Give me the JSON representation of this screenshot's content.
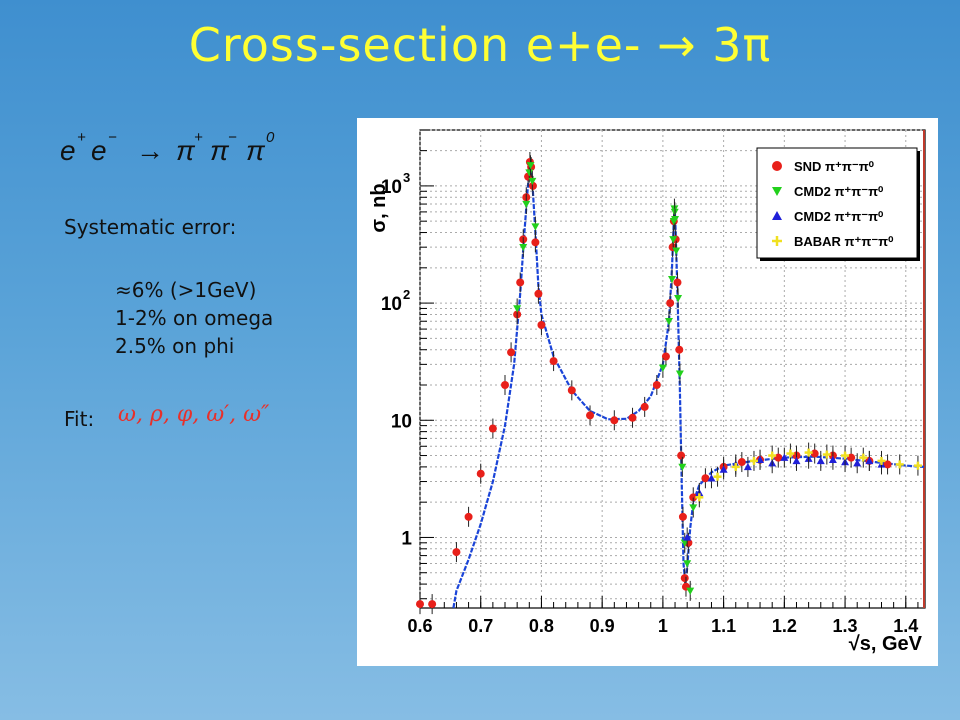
{
  "slide": {
    "title": "Cross-section e+e-  → 3π",
    "reaction": {
      "lhs_e1": "e",
      "lhs_e1_sup": "+",
      "lhs_e2": "e",
      "lhs_e2_sup": "−",
      "arrow": "→",
      "pi1": "π",
      "pi1_sup": "+",
      "pi2": "π",
      "pi2_sup": "−",
      "pi3": "π",
      "pi3_sup": "0"
    },
    "systematic_heading": "Systematic error:",
    "systematic_items": [
      "≈6% (>1GeV)",
      "1-2% on omega",
      "2.5% on phi"
    ],
    "fit_label": "Fit:",
    "fit_formula": "ω, ρ, φ, ω′, ω″"
  },
  "chart_data": {
    "type": "scatter",
    "ylabel": "σ, nb",
    "xlabel": "√s, GeV",
    "xlim": [
      0.6,
      1.43
    ],
    "ylim": [
      0.25,
      3000
    ],
    "yscale": "log",
    "grid": true,
    "legend_position": "top-right",
    "x_ticks": [
      "0.6",
      "0.7",
      "0.8",
      "0.9",
      "1",
      "1.1",
      "1.2",
      "1.3",
      "1.4"
    ],
    "y_ticks": [
      {
        "value": 1,
        "base": "1",
        "exp": ""
      },
      {
        "value": 10,
        "base": "10",
        "exp": ""
      },
      {
        "value": 100,
        "base": "10",
        "exp": "2"
      },
      {
        "value": 1000,
        "base": "10",
        "exp": "3"
      }
    ],
    "fit_curve": [
      [
        0.655,
        0.25
      ],
      [
        0.66,
        0.35
      ],
      [
        0.68,
        0.65
      ],
      [
        0.7,
        1.3
      ],
      [
        0.72,
        3.0
      ],
      [
        0.74,
        9.0
      ],
      [
        0.755,
        30
      ],
      [
        0.765,
        120
      ],
      [
        0.772,
        400
      ],
      [
        0.777,
        900
      ],
      [
        0.781,
        1550
      ],
      [
        0.783,
        1450
      ],
      [
        0.786,
        900
      ],
      [
        0.79,
        400
      ],
      [
        0.795,
        140
      ],
      [
        0.8,
        80
      ],
      [
        0.82,
        35
      ],
      [
        0.85,
        18
      ],
      [
        0.88,
        12
      ],
      [
        0.91,
        10.2
      ],
      [
        0.94,
        10.3
      ],
      [
        0.96,
        12
      ],
      [
        0.98,
        16
      ],
      [
        1.0,
        30
      ],
      [
        1.01,
        70
      ],
      [
        1.015,
        200
      ],
      [
        1.018,
        500
      ],
      [
        1.0195,
        650
      ],
      [
        1.021,
        420
      ],
      [
        1.024,
        120
      ],
      [
        1.028,
        18
      ],
      [
        1.031,
        3
      ],
      [
        1.034,
        0.6
      ],
      [
        1.037,
        0.4
      ],
      [
        1.04,
        0.55
      ],
      [
        1.045,
        1.2
      ],
      [
        1.05,
        2.0
      ],
      [
        1.06,
        2.8
      ],
      [
        1.08,
        3.6
      ],
      [
        1.1,
        4.1
      ],
      [
        1.15,
        4.5
      ],
      [
        1.2,
        4.8
      ],
      [
        1.25,
        4.9
      ],
      [
        1.3,
        4.7
      ],
      [
        1.35,
        4.4
      ],
      [
        1.4,
        4.1
      ],
      [
        1.43,
        4.0
      ]
    ],
    "series": [
      {
        "name": "SND π⁺π⁻π⁰",
        "color": "#e8201a",
        "marker": "circle",
        "points": [
          [
            0.6,
            0.27
          ],
          [
            0.62,
            0.27
          ],
          [
            0.66,
            0.75
          ],
          [
            0.68,
            1.5
          ],
          [
            0.7,
            3.5
          ],
          [
            0.72,
            8.5
          ],
          [
            0.74,
            20
          ],
          [
            0.75,
            38
          ],
          [
            0.76,
            80
          ],
          [
            0.765,
            150
          ],
          [
            0.77,
            350
          ],
          [
            0.775,
            800
          ],
          [
            0.778,
            1200
          ],
          [
            0.781,
            1600
          ],
          [
            0.783,
            1450
          ],
          [
            0.786,
            1000
          ],
          [
            0.79,
            330
          ],
          [
            0.795,
            120
          ],
          [
            0.8,
            65
          ],
          [
            0.82,
            32
          ],
          [
            0.85,
            18
          ],
          [
            0.88,
            11
          ],
          [
            0.92,
            10
          ],
          [
            0.95,
            10.5
          ],
          [
            0.97,
            13
          ],
          [
            0.99,
            20
          ],
          [
            1.005,
            35
          ],
          [
            1.012,
            100
          ],
          [
            1.016,
            300
          ],
          [
            1.018,
            500
          ],
          [
            1.021,
            350
          ],
          [
            1.024,
            150
          ],
          [
            1.027,
            40
          ],
          [
            1.03,
            5
          ],
          [
            1.033,
            1.5
          ],
          [
            1.036,
            0.45
          ],
          [
            1.038,
            0.38
          ],
          [
            1.042,
            0.9
          ],
          [
            1.05,
            2.2
          ],
          [
            1.07,
            3.2
          ],
          [
            1.1,
            4.0
          ],
          [
            1.13,
            4.4
          ],
          [
            1.16,
            4.6
          ],
          [
            1.19,
            4.8
          ],
          [
            1.22,
            5.0
          ],
          [
            1.25,
            5.2
          ],
          [
            1.28,
            5.0
          ],
          [
            1.31,
            4.8
          ],
          [
            1.34,
            4.5
          ],
          [
            1.37,
            4.2
          ]
        ]
      },
      {
        "name": "CMD2 π⁺π⁻π⁰",
        "color": "#22d01c",
        "marker": "triangle-down",
        "points": [
          [
            0.76,
            90
          ],
          [
            0.77,
            300
          ],
          [
            0.775,
            700
          ],
          [
            0.78,
            1300
          ],
          [
            0.782,
            1500
          ],
          [
            0.785,
            1100
          ],
          [
            0.79,
            450
          ],
          [
            1.0,
            28
          ],
          [
            1.01,
            70
          ],
          [
            1.015,
            160
          ],
          [
            1.017,
            350
          ],
          [
            1.018,
            500
          ],
          [
            1.019,
            640
          ],
          [
            1.0195,
            600
          ],
          [
            1.02,
            520
          ],
          [
            1.022,
            280
          ],
          [
            1.025,
            110
          ],
          [
            1.028,
            25
          ],
          [
            1.032,
            4
          ],
          [
            1.036,
            0.9
          ],
          [
            1.04,
            0.6
          ],
          [
            1.045,
            0.35
          ],
          [
            1.05,
            1.8
          ]
        ]
      },
      {
        "name": "CMD2 π⁺π⁻π⁰",
        "color": "#2020d8",
        "marker": "triangle-up",
        "points": [
          [
            1.04,
            1.0
          ],
          [
            1.06,
            2.4
          ],
          [
            1.08,
            3.2
          ],
          [
            1.1,
            3.8
          ],
          [
            1.12,
            4.2
          ],
          [
            1.14,
            4.0
          ],
          [
            1.16,
            4.6
          ],
          [
            1.18,
            4.3
          ],
          [
            1.2,
            4.8
          ],
          [
            1.22,
            4.5
          ],
          [
            1.24,
            4.7
          ],
          [
            1.26,
            4.5
          ],
          [
            1.28,
            4.6
          ],
          [
            1.3,
            4.4
          ],
          [
            1.32,
            4.3
          ],
          [
            1.34,
            4.5
          ],
          [
            1.36,
            4.2
          ]
        ]
      },
      {
        "name": "BABAR π⁺π⁻π⁰",
        "color": "#f0e020",
        "marker": "star",
        "points": [
          [
            1.06,
            2.2
          ],
          [
            1.09,
            3.3
          ],
          [
            1.12,
            4.0
          ],
          [
            1.15,
            4.5
          ],
          [
            1.18,
            5.0
          ],
          [
            1.21,
            5.2
          ],
          [
            1.24,
            5.3
          ],
          [
            1.27,
            5.1
          ],
          [
            1.3,
            5.0
          ],
          [
            1.33,
            4.8
          ],
          [
            1.36,
            4.5
          ],
          [
            1.39,
            4.2
          ],
          [
            1.42,
            4.1
          ]
        ]
      }
    ]
  }
}
